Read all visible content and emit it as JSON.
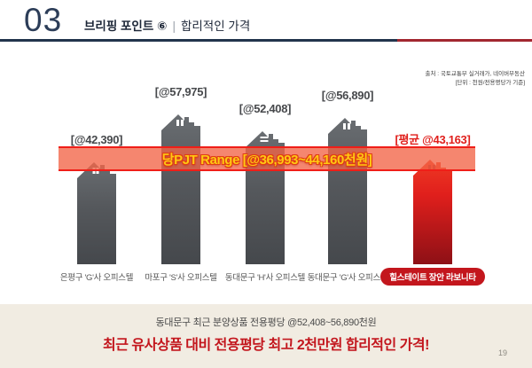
{
  "header": {
    "section_number": "03",
    "title": "브리핑 포인트 ⑥",
    "separator": "|",
    "subtitle": "합리적인 가격"
  },
  "chart": {
    "source": "출처 : 국토교통부 실거래가, 네이버부동산",
    "unit_note": "[단위 : 천원/전용평당가 기준]"
  },
  "chart_data": {
    "type": "bar",
    "categories": [
      "은평구 'G'사 오피스텔",
      "마포구 'S'사 오피스텔",
      "동대문구 'H'사 오피스텔",
      "동대문구 'G'사 오피스텔",
      "힐스테이트 장안 라보니타"
    ],
    "values": [
      42390,
      57975,
      52408,
      56890,
      43163
    ],
    "value_labels": [
      "[@42,390]",
      "[@57,975]",
      "[@52,408]",
      "[@56,890]",
      "[평균 @43,163]"
    ],
    "highlight_index": 4,
    "range_band": {
      "label": "당PJT Range [@36,993~44,160천원]",
      "min": 36993,
      "max": 44160
    },
    "ylabel": "천원/전용평당가",
    "legend_position": "none",
    "grid": false
  },
  "footer": {
    "line1": "동대문구 최근 분양상품 전용평당 @52,408~56,890천원",
    "line2": "최근 유사상품 대비 전용평당 최고 2천만원 합리적인 가격!",
    "page_number": "19"
  },
  "colors": {
    "bar_gray": "#55585c",
    "bar_red": "#e01f1c",
    "band_fill": "#f26446",
    "band_border": "#f01e18",
    "band_text": "#ffc813",
    "pill_red": "#c3161d",
    "header_navy": "#22344c",
    "header_red": "#a22730",
    "footer_bg": "#f1ece2"
  }
}
